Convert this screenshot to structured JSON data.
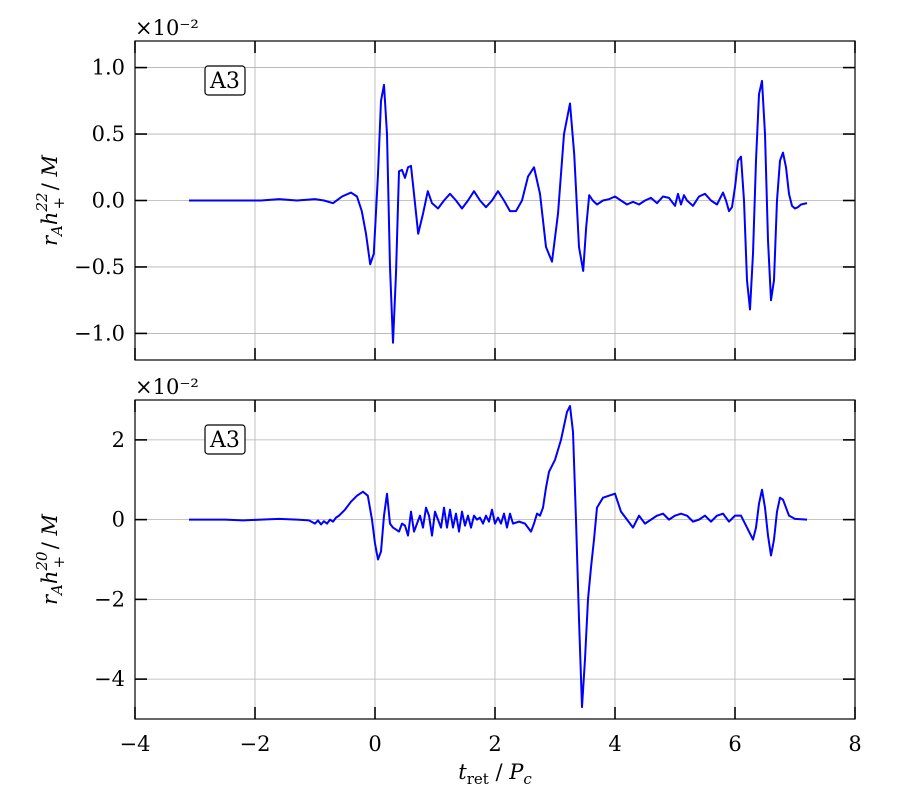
{
  "chart_data": [
    {
      "type": "line",
      "panel": "top",
      "annotation": "A3",
      "exponent_label": "×10⁻²",
      "ylabel": "r_A h_+^22 / M",
      "xlabel": "",
      "xlim": [
        -4,
        8
      ],
      "ylim": [
        -1.2,
        1.2
      ],
      "xticks": [
        -4,
        -2,
        0,
        2,
        4,
        6,
        8
      ],
      "yticks": [
        -1.0,
        -0.5,
        0.0,
        0.5,
        1.0
      ],
      "ytick_labels": [
        "−1.0",
        "−0.5",
        "0.0",
        "0.5",
        "1.0"
      ],
      "grid": true,
      "color": "#0000ff",
      "series": [
        {
          "x": [
            -3.1,
            -2.8,
            -2.5,
            -2.2,
            -1.9,
            -1.6,
            -1.3,
            -1.0,
            -0.85,
            -0.7,
            -0.55,
            -0.4,
            -0.3,
            -0.22,
            -0.15,
            -0.08,
            -0.02,
            0.05,
            0.1,
            0.15,
            0.2,
            0.25,
            0.3,
            0.35,
            0.4,
            0.45,
            0.5,
            0.55,
            0.6,
            0.65,
            0.72,
            0.8,
            0.88,
            0.95,
            1.05,
            1.15,
            1.25,
            1.35,
            1.45,
            1.55,
            1.65,
            1.75,
            1.85,
            1.95,
            2.05,
            2.15,
            2.25,
            2.35,
            2.45,
            2.55,
            2.65,
            2.75,
            2.85,
            2.95,
            3.05,
            3.15,
            3.25,
            3.32,
            3.4,
            3.47,
            3.52,
            3.57,
            3.63,
            3.7,
            3.8,
            3.9,
            4.0,
            4.1,
            4.2,
            4.3,
            4.4,
            4.5,
            4.6,
            4.7,
            4.8,
            4.9,
            5.0,
            5.05,
            5.1,
            5.15,
            5.2,
            5.3,
            5.4,
            5.5,
            5.6,
            5.7,
            5.8,
            5.85,
            5.9,
            5.95,
            6.0,
            6.05,
            6.1,
            6.15,
            6.2,
            6.25,
            6.3,
            6.35,
            6.4,
            6.45,
            6.5,
            6.55,
            6.6,
            6.65,
            6.7,
            6.75,
            6.8,
            6.85,
            6.9,
            6.95,
            7.0,
            7.05,
            7.1,
            7.2
          ],
          "y": [
            0.0,
            0.0,
            0.0,
            0.0,
            0.0,
            0.01,
            0.0,
            0.01,
            0.0,
            -0.02,
            0.03,
            0.06,
            0.03,
            -0.08,
            -0.25,
            -0.48,
            -0.4,
            0.2,
            0.75,
            0.87,
            0.5,
            -0.5,
            -1.07,
            -0.55,
            0.22,
            0.23,
            0.17,
            0.25,
            0.26,
            0.05,
            -0.25,
            -0.1,
            0.07,
            -0.02,
            -0.06,
            0.0,
            0.05,
            0.0,
            -0.06,
            0.0,
            0.07,
            0.0,
            -0.05,
            0.0,
            0.07,
            0.0,
            -0.08,
            -0.08,
            0.0,
            0.18,
            0.25,
            0.05,
            -0.35,
            -0.46,
            -0.1,
            0.5,
            0.73,
            0.35,
            -0.35,
            -0.53,
            -0.2,
            0.04,
            0.0,
            -0.03,
            0.0,
            0.01,
            0.03,
            0.0,
            -0.03,
            -0.01,
            -0.03,
            0.0,
            0.02,
            -0.02,
            0.03,
            0.02,
            -0.04,
            0.05,
            -0.03,
            0.04,
            0.0,
            -0.04,
            0.03,
            0.05,
            0.0,
            -0.03,
            0.06,
            0.0,
            -0.08,
            -0.05,
            0.1,
            0.3,
            0.33,
            0.0,
            -0.6,
            -0.82,
            -0.4,
            0.3,
            0.8,
            0.9,
            0.5,
            -0.3,
            -0.75,
            -0.6,
            0.0,
            0.3,
            0.36,
            0.25,
            0.05,
            -0.04,
            -0.06,
            -0.05,
            -0.03,
            -0.02
          ]
        }
      ]
    },
    {
      "type": "line",
      "panel": "bottom",
      "annotation": "A3",
      "exponent_label": "×10⁻²",
      "ylabel": "r_A h_+^20 / M",
      "xlabel": "t_ret / P_c",
      "xlim": [
        -4,
        8
      ],
      "ylim": [
        -5,
        3
      ],
      "xticks": [
        -4,
        -2,
        0,
        2,
        4,
        6,
        8
      ],
      "xtick_labels": [
        "−4",
        "−2",
        "0",
        "2",
        "4",
        "6",
        "8"
      ],
      "yticks": [
        -4,
        -2,
        0,
        2
      ],
      "ytick_labels": [
        "−4",
        "−2",
        "0",
        "2"
      ],
      "grid": true,
      "color": "#0000ff",
      "series": [
        {
          "x": [
            -3.1,
            -2.8,
            -2.5,
            -2.2,
            -1.9,
            -1.6,
            -1.3,
            -1.1,
            -1.0,
            -0.95,
            -0.9,
            -0.85,
            -0.8,
            -0.75,
            -0.7,
            -0.65,
            -0.6,
            -0.5,
            -0.4,
            -0.3,
            -0.2,
            -0.12,
            -0.05,
            0.0,
            0.05,
            0.1,
            0.15,
            0.2,
            0.25,
            0.3,
            0.35,
            0.4,
            0.45,
            0.5,
            0.55,
            0.6,
            0.65,
            0.7,
            0.75,
            0.8,
            0.85,
            0.9,
            0.95,
            1.0,
            1.05,
            1.1,
            1.15,
            1.2,
            1.25,
            1.3,
            1.35,
            1.4,
            1.45,
            1.5,
            1.55,
            1.6,
            1.65,
            1.7,
            1.75,
            1.8,
            1.85,
            1.9,
            1.95,
            2.0,
            2.05,
            2.1,
            2.15,
            2.2,
            2.25,
            2.3,
            2.4,
            2.5,
            2.6,
            2.65,
            2.7,
            2.75,
            2.8,
            2.85,
            2.9,
            3.0,
            3.1,
            3.2,
            3.25,
            3.3,
            3.35,
            3.4,
            3.45,
            3.5,
            3.55,
            3.6,
            3.65,
            3.7,
            3.8,
            3.9,
            4.0,
            4.1,
            4.2,
            4.3,
            4.4,
            4.5,
            4.6,
            4.7,
            4.8,
            4.9,
            5.0,
            5.1,
            5.2,
            5.3,
            5.4,
            5.5,
            5.6,
            5.7,
            5.8,
            5.9,
            6.0,
            6.1,
            6.2,
            6.3,
            6.35,
            6.4,
            6.45,
            6.5,
            6.55,
            6.6,
            6.65,
            6.7,
            6.75,
            6.8,
            6.85,
            6.9,
            7.0,
            7.1,
            7.2
          ],
          "y": [
            0.0,
            0.0,
            0.0,
            -0.02,
            0.0,
            0.02,
            0.0,
            -0.02,
            -0.1,
            -0.02,
            -0.12,
            -0.04,
            -0.1,
            0.0,
            -0.05,
            0.05,
            0.1,
            0.25,
            0.45,
            0.6,
            0.7,
            0.6,
            0.0,
            -0.6,
            -1.0,
            -0.8,
            0.1,
            0.65,
            -0.1,
            -0.2,
            -0.25,
            -0.3,
            -0.1,
            -0.15,
            -0.4,
            0.2,
            -0.3,
            -0.1,
            0.1,
            -0.2,
            0.3,
            0.1,
            -0.4,
            0.2,
            0.0,
            -0.2,
            0.3,
            -0.2,
            0.25,
            -0.2,
            0.15,
            -0.3,
            0.2,
            -0.15,
            0.1,
            -0.2,
            0.1,
            0.0,
            0.05,
            -0.1,
            0.1,
            -0.05,
            0.25,
            -0.1,
            0.05,
            -0.1,
            0.15,
            -0.2,
            0.15,
            -0.1,
            -0.05,
            -0.1,
            -0.3,
            -0.1,
            0.15,
            0.1,
            0.3,
            0.8,
            1.2,
            1.5,
            2.0,
            2.7,
            2.85,
            2.2,
            0.0,
            -2.5,
            -4.7,
            -3.5,
            -2.0,
            -1.2,
            -0.5,
            0.3,
            0.55,
            0.6,
            0.65,
            0.2,
            0.0,
            -0.2,
            0.1,
            -0.1,
            0.0,
            0.1,
            0.15,
            0.0,
            0.1,
            0.15,
            0.1,
            -0.05,
            0.0,
            0.1,
            -0.05,
            0.1,
            0.15,
            -0.05,
            0.1,
            0.1,
            -0.2,
            -0.5,
            -0.2,
            0.4,
            0.75,
            0.3,
            -0.4,
            -0.9,
            -0.5,
            0.2,
            0.55,
            0.5,
            0.3,
            0.1,
            0.02,
            0.01,
            0.0
          ]
        }
      ]
    }
  ]
}
